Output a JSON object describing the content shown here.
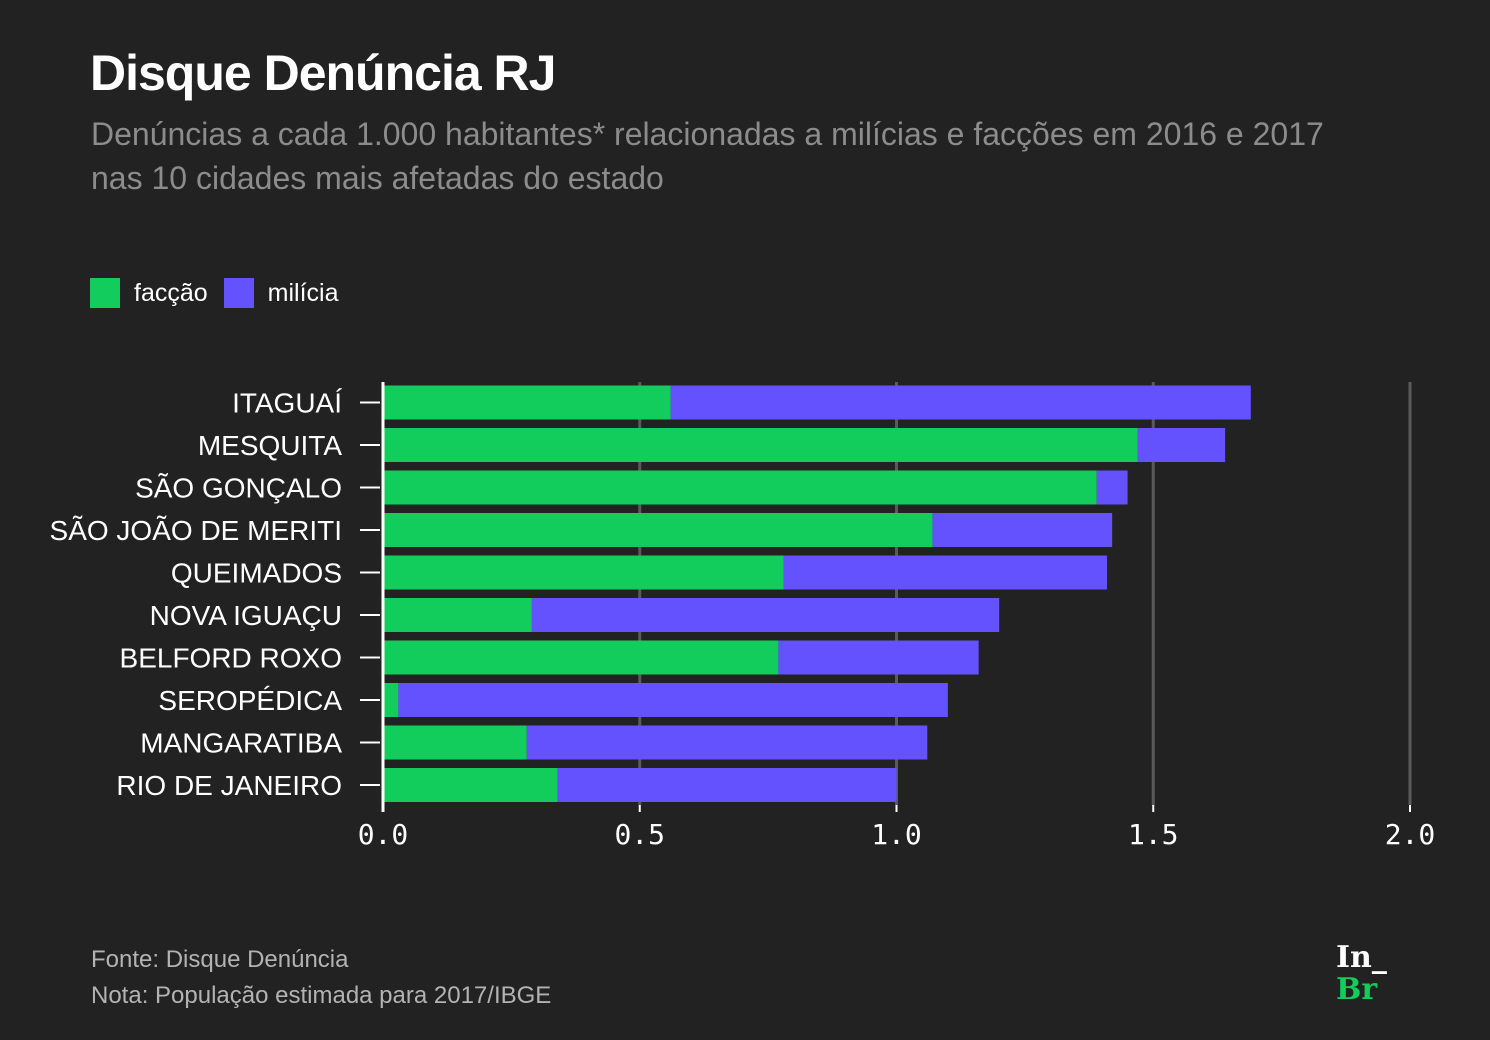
{
  "header": {
    "title": "Disque Denúncia RJ",
    "subtitle": "Denúncias a cada 1.000 habitantes* relacionadas a milícias e facções em 2016 e 2017 nas 10 cidades mais afetadas do estado"
  },
  "legend": [
    {
      "label": "facção",
      "color": "#12cc5c"
    },
    {
      "label": "milícia",
      "color": "#6352fe"
    }
  ],
  "footer": {
    "source": "Fonte: Disque Denúncia",
    "note": "Nota: População estimada para 2017/IBGE"
  },
  "logo": {
    "top": "In_",
    "bottom": "Br"
  },
  "chart_data": {
    "type": "bar",
    "orientation": "horizontal",
    "stacked": true,
    "title": "Disque Denúncia RJ",
    "subtitle": "Denúncias a cada 1.000 habitantes* relacionadas a milícias e facções em 2016 e 2017 nas 10 cidades mais afetadas do estado",
    "xlabel": "",
    "ylabel": "",
    "xlim": [
      0,
      2.0
    ],
    "xticks": [
      0.0,
      0.5,
      1.0,
      1.5,
      2.0
    ],
    "xtick_labels": [
      "0.0",
      "0.5",
      "1.0",
      "1.5",
      "2.0"
    ],
    "grid": true,
    "legend_position": "top-left",
    "categories": [
      "ITAGUAÍ",
      "MESQUITA",
      "SÃO GONÇALO",
      "SÃO JOÃO DE MERITI",
      "QUEIMADOS",
      "NOVA IGUAÇU",
      "BELFORD ROXO",
      "SEROPÉDICA",
      "MANGARATIBA",
      "RIO DE JANEIRO"
    ],
    "series": [
      {
        "name": "facção",
        "color": "#12cc5c",
        "values": [
          0.56,
          1.47,
          1.39,
          1.07,
          0.78,
          0.29,
          0.77,
          0.03,
          0.28,
          0.34
        ]
      },
      {
        "name": "milícia",
        "color": "#6352fe",
        "values": [
          1.13,
          0.17,
          0.06,
          0.35,
          0.63,
          0.91,
          0.39,
          1.07,
          0.78,
          0.66
        ]
      }
    ]
  }
}
